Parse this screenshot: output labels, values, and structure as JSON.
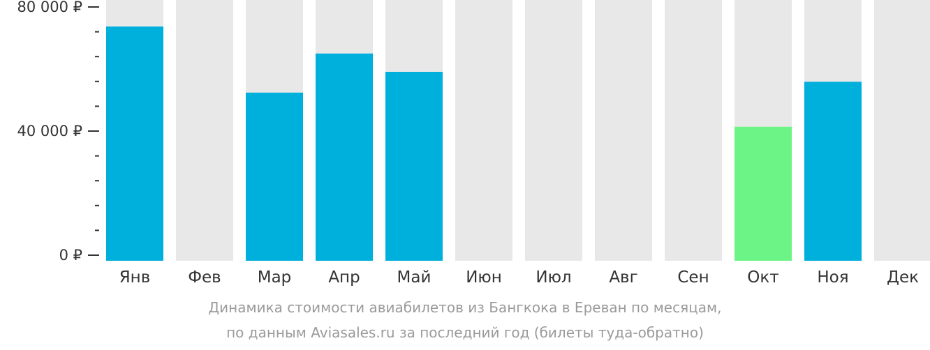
{
  "chart_data": {
    "type": "bar",
    "categories": [
      "Янв",
      "Фев",
      "Мар",
      "Апр",
      "Май",
      "Июн",
      "Июл",
      "Авг",
      "Сен",
      "Окт",
      "Ноя",
      "Дек"
    ],
    "values": [
      73700,
      null,
      52400,
      65000,
      59100,
      null,
      null,
      null,
      null,
      41400,
      55900,
      null
    ],
    "ylim": [
      0,
      80000
    ],
    "y_major_ticks": [
      {
        "value": 0,
        "label": "0 ₽"
      },
      {
        "value": 40000,
        "label": "40 000 ₽"
      },
      {
        "value": 80000,
        "label": "80 000 ₽"
      }
    ],
    "y_minor_step": 8000,
    "highlight_index": 9,
    "colors": {
      "bar": "#00b0dc",
      "highlight": "#6cf486",
      "background_bar": "#e8e8e8",
      "tick": "#333333"
    },
    "caption_lines": [
      "Динамика стоимости авиабилетов из Бангкока в Ереван по месяцам,",
      "по данным Aviasales.ru за последний год (билеты туда-обратно)"
    ]
  }
}
